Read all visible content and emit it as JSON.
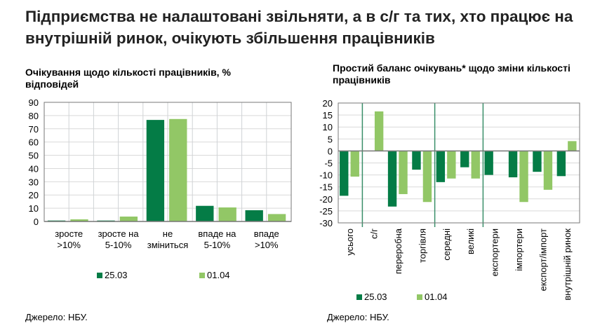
{
  "title": "Підприємства не налаштовані звільняти, а в с/г та тих, хто працює на внутрішній ринок, очікують збільшення працівників",
  "colors": {
    "series1": "#047C46",
    "series2": "#92C766"
  },
  "chart_data": [
    {
      "type": "bar",
      "title": "Очікування щодо кількості працівників, % відповідей",
      "categories": [
        "зросте >10%",
        "зросте на 5-10%",
        "не зміниться",
        "впаде на 5-10%",
        "впаде >10%"
      ],
      "category_lines": [
        [
          "зросте",
          ">10%"
        ],
        [
          "зросте на",
          "5-10%"
        ],
        [
          "не",
          "зміниться"
        ],
        [
          "впаде на",
          "5-10%"
        ],
        [
          "впаде",
          ">10%"
        ]
      ],
      "series": [
        {
          "name": "25.03",
          "values": [
            0.7,
            0.7,
            76.7,
            11.8,
            8.5
          ]
        },
        {
          "name": "01.04",
          "values": [
            1.6,
            3.7,
            77.4,
            10.6,
            5.6
          ]
        }
      ],
      "ylim": [
        0,
        90
      ],
      "yticks": [
        0,
        10,
        20,
        30,
        40,
        50,
        60,
        70,
        80,
        90
      ],
      "grid": true,
      "legend": "bottom",
      "source": "Джерело: НБУ."
    },
    {
      "type": "bar",
      "title": "Простий баланс очікувань* щодо зміни кількості працівників",
      "categories": [
        "усього",
        "с/г",
        "переробна",
        "торгівля",
        "середні",
        "великі",
        "експортери",
        "імпортери",
        "експорт/імпорт",
        "внутрішній ринок"
      ],
      "series": [
        {
          "name": "25.03",
          "values": [
            -18.7,
            null,
            -23.2,
            -7.8,
            -13,
            -6.8,
            -10,
            -11,
            -8.7,
            -10.5
          ]
        },
        {
          "name": "01.04",
          "values": [
            -10.7,
            16.5,
            -18,
            -21.3,
            -11.5,
            -11.5,
            null,
            -21.3,
            -16.2,
            4.1
          ]
        }
      ],
      "ylim": [
        -30,
        20
      ],
      "yticks": [
        -30,
        -25,
        -20,
        -15,
        -10,
        -5,
        0,
        5,
        10,
        15,
        20
      ],
      "grid": true,
      "legend": "bottom",
      "separators_after": [
        0,
        3,
        5
      ],
      "source": "Джерело: НБУ."
    }
  ]
}
